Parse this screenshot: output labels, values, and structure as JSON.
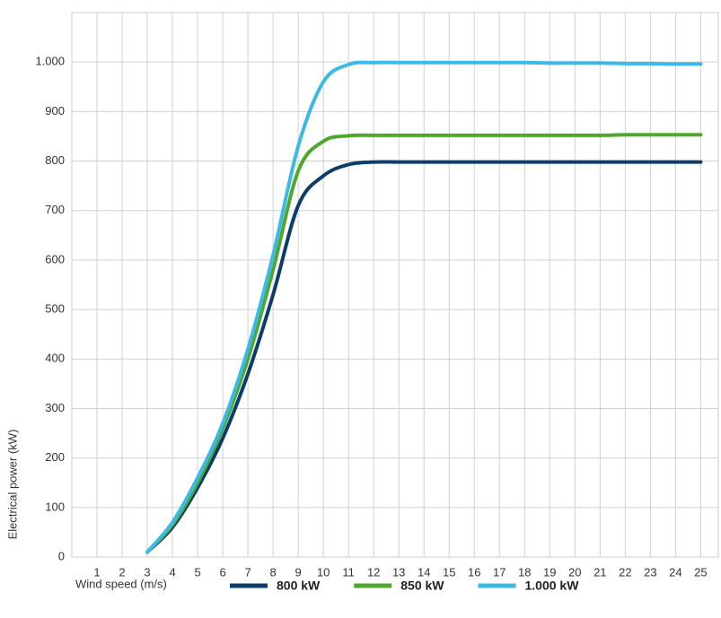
{
  "chart_data": {
    "type": "line",
    "y_label": "Electrical power (kW)",
    "x_label": "Wind speed (m/s)",
    "x": [
      3,
      4,
      5,
      6,
      7,
      8,
      9,
      10,
      11,
      12,
      13,
      14,
      15,
      16,
      17,
      18,
      19,
      20,
      21,
      22,
      23,
      24,
      25
    ],
    "series": [
      {
        "name": "800 kW",
        "color": "#0b3d6b",
        "values": [
          10,
          60,
          140,
          240,
          370,
          530,
          710,
          770,
          793,
          798,
          798,
          798,
          798,
          798,
          798,
          798,
          798,
          798,
          798,
          798,
          798,
          798,
          798
        ]
      },
      {
        "name": "850 kW",
        "color": "#4ea72e",
        "values": [
          10,
          65,
          150,
          260,
          400,
          580,
          780,
          840,
          851,
          852,
          852,
          852,
          852,
          852,
          852,
          852,
          852,
          852,
          852,
          853,
          853,
          853,
          853
        ]
      },
      {
        "name": "1.000 kW",
        "color": "#3cb9e6",
        "values": [
          10,
          70,
          160,
          270,
          420,
          610,
          830,
          960,
          995,
          999,
          999,
          999,
          999,
          999,
          999,
          999,
          998,
          998,
          998,
          997,
          997,
          996,
          996
        ]
      }
    ],
    "xlim": [
      0,
      25.7
    ],
    "ylim": [
      0,
      1100
    ],
    "xticks": [
      1,
      2,
      3,
      4,
      5,
      6,
      7,
      8,
      9,
      10,
      11,
      12,
      13,
      14,
      15,
      16,
      17,
      18,
      19,
      20,
      21,
      22,
      23,
      24,
      25
    ],
    "yticks": [
      0,
      100,
      200,
      300,
      400,
      500,
      600,
      700,
      800,
      900,
      {
        "value": 1000,
        "label": "1.000"
      }
    ],
    "grid": true
  }
}
